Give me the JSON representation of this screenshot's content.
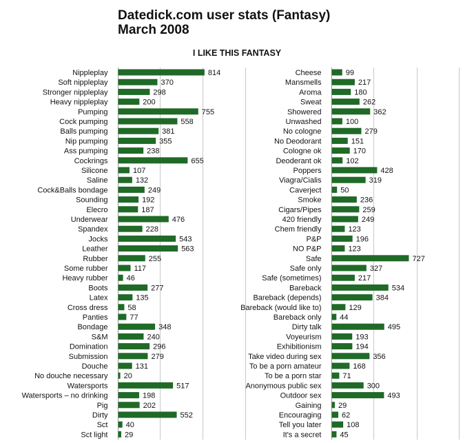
{
  "chart_data": {
    "type": "bar",
    "title": "Datedick.com user stats (Fantasy)",
    "subtitle": "March 2008",
    "header": "I LIKE THIS FANTASY",
    "orientation": "horizontal",
    "bar_color": "#1f6a27",
    "grid": true,
    "panels": [
      {
        "categories": [
          "Nippleplay",
          "Soft nippleplay",
          "Stronger nippleplay",
          "Heavy nippleplay",
          "Pumping",
          "Cock pumping",
          "Balls pumping",
          "Nip pumping",
          "Ass pumping",
          "Cockrings",
          "Silicone",
          "Saline",
          "Cock&Balls bondage",
          "Sounding",
          "Elecro",
          "Underwear",
          "Spandex",
          "Jocks",
          "Leather",
          "Rubber",
          "Some rubber",
          "Heavy rubber",
          "Boots",
          "Latex",
          "Cross dress",
          "Panties",
          "Bondage",
          "S&M",
          "Domination",
          "Submission",
          "Douche",
          "No douche necessary",
          "Watersports",
          "Watersports – no drinking",
          "Pig",
          "Dirty",
          "Sct",
          "Sct light"
        ],
        "values": [
          814,
          370,
          298,
          200,
          755,
          558,
          381,
          355,
          238,
          655,
          107,
          132,
          249,
          192,
          187,
          476,
          228,
          543,
          563,
          255,
          117,
          46,
          277,
          135,
          58,
          77,
          348,
          240,
          296,
          279,
          131,
          20,
          517,
          198,
          202,
          552,
          40,
          29
        ]
      },
      {
        "categories": [
          "Cheese",
          "Mansmells",
          "Aroma",
          "Sweat",
          "Showered",
          "Unwashed",
          "No cologne",
          "No Deodorant",
          "Cologne ok",
          "Deoderant ok",
          "Poppers",
          "Viagra/Cialis",
          "Caverject",
          "Smoke",
          "Cigars/Pipes",
          "420 friendly",
          "Chem friendly",
          "P&P",
          "NO P&P",
          "Safe",
          "Safe only",
          "Safe (sometimes)",
          "Bareback",
          "Bareback (depends)",
          "Bareback (would like to)",
          "Bareback only",
          "Dirty talk",
          "Voyeurism",
          "Exhibitionism",
          "Take video during sex",
          "To be a porn amateur",
          "To be a porn star",
          "Anonymous public sex",
          "Outdoor sex",
          "Gaining",
          "Encouraging",
          "Tell you later",
          "It's a secret"
        ],
        "values": [
          99,
          217,
          180,
          262,
          362,
          100,
          279,
          151,
          170,
          102,
          428,
          319,
          50,
          236,
          259,
          249,
          123,
          196,
          123,
          727,
          327,
          217,
          534,
          384,
          129,
          44,
          495,
          193,
          194,
          356,
          168,
          71,
          300,
          493,
          29,
          62,
          108,
          45
        ]
      }
    ]
  }
}
